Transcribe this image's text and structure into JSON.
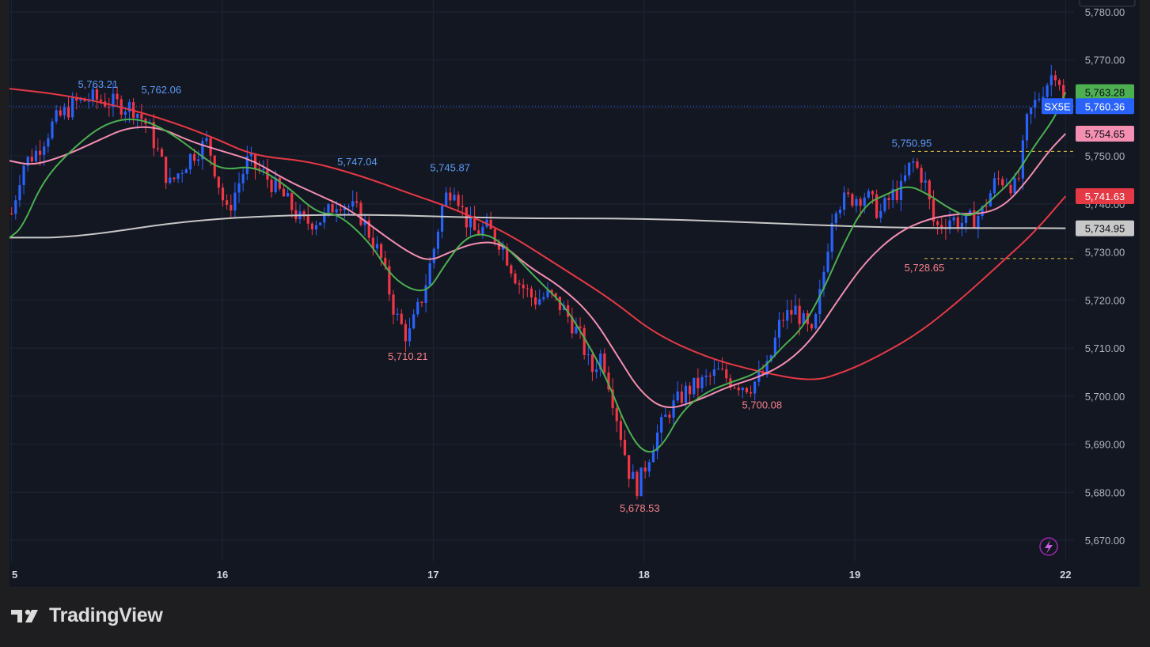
{
  "brand": {
    "name": "TradingView"
  },
  "colors": {
    "background": "#131722",
    "grid": "#1f2535",
    "up": "#2962ff",
    "down": "#f23645",
    "ma_fast": "#4caf50",
    "ma_mid": "#f48fb1",
    "ma_slow": "#e53945",
    "ma_long": "#c8c8c8",
    "axis_text": "#b2b5be"
  },
  "chart_data": {
    "type": "candlestick",
    "symbol": "SX5E",
    "ylim": [
      5665,
      5780
    ],
    "y_ticks": [
      5670,
      5680,
      5690,
      5700,
      5710,
      5720,
      5730,
      5740,
      5750,
      5760,
      5770,
      5780
    ],
    "y_tick_labels": [
      "5,670.00",
      "5,680.00",
      "5,690.00",
      "5,700.00",
      "5,710.00",
      "5,720.00",
      "5,730.00",
      "5,740.00",
      "5,750.00",
      "5,760.00",
      "5,770.00",
      "5,780.00"
    ],
    "x_range": [
      -0.01,
      5.04
    ],
    "x_ticks": [
      {
        "x": 0,
        "label": "5"
      },
      {
        "x": 1,
        "label": "16"
      },
      {
        "x": 2,
        "label": "17"
      },
      {
        "x": 3,
        "label": "18"
      },
      {
        "x": 4,
        "label": "19"
      },
      {
        "x": 5,
        "label": "22"
      }
    ],
    "candle_anchors": [
      [
        0.0,
        5738
      ],
      [
        0.05,
        5748
      ],
      [
        0.12,
        5751
      ],
      [
        0.2,
        5757
      ],
      [
        0.3,
        5761
      ],
      [
        0.38,
        5762
      ],
      [
        0.48,
        5761
      ],
      [
        0.58,
        5760
      ],
      [
        0.65,
        5756
      ],
      [
        0.75,
        5744
      ],
      [
        0.85,
        5750
      ],
      [
        0.93,
        5753
      ],
      [
        1.02,
        5738
      ],
      [
        1.12,
        5749
      ],
      [
        1.2,
        5746
      ],
      [
        1.3,
        5741
      ],
      [
        1.38,
        5736
      ],
      [
        1.48,
        5737
      ],
      [
        1.55,
        5741
      ],
      [
        1.65,
        5738
      ],
      [
        1.75,
        5729
      ],
      [
        1.82,
        5717
      ],
      [
        1.88,
        5712
      ],
      [
        1.95,
        5721
      ],
      [
        2.0,
        5730
      ],
      [
        2.05,
        5741
      ],
      [
        2.1,
        5744
      ],
      [
        2.15,
        5737
      ],
      [
        2.2,
        5734
      ],
      [
        2.25,
        5735
      ],
      [
        2.32,
        5732
      ],
      [
        2.4,
        5724
      ],
      [
        2.48,
        5720
      ],
      [
        2.55,
        5721
      ],
      [
        2.62,
        5718
      ],
      [
        2.7,
        5712
      ],
      [
        2.75,
        5705
      ],
      [
        2.8,
        5709
      ],
      [
        2.86,
        5698
      ],
      [
        2.93,
        5684
      ],
      [
        2.97,
        5681
      ],
      [
        3.05,
        5691
      ],
      [
        3.12,
        5697
      ],
      [
        3.2,
        5701
      ],
      [
        3.28,
        5703
      ],
      [
        3.35,
        5705
      ],
      [
        3.42,
        5703
      ],
      [
        3.5,
        5702
      ],
      [
        3.58,
        5705
      ],
      [
        3.65,
        5716
      ],
      [
        3.72,
        5718
      ],
      [
        3.8,
        5712
      ],
      [
        3.85,
        5725
      ],
      [
        3.9,
        5740
      ],
      [
        3.97,
        5741
      ],
      [
        4.05,
        5742
      ],
      [
        4.12,
        5738
      ],
      [
        4.18,
        5742
      ],
      [
        4.22,
        5743
      ],
      [
        4.27,
        5749
      ],
      [
        4.33,
        5745
      ],
      [
        4.38,
        5735
      ],
      [
        4.45,
        5737
      ],
      [
        4.52,
        5736
      ],
      [
        4.6,
        5738
      ],
      [
        4.67,
        5745
      ],
      [
        4.72,
        5745
      ],
      [
        4.77,
        5743
      ],
      [
        4.82,
        5758
      ],
      [
        4.88,
        5763
      ],
      [
        4.95,
        5768
      ],
      [
        4.97,
        5766
      ],
      [
        4.99,
        5761
      ]
    ],
    "series": [
      {
        "name": "SX5E",
        "last_label": "5,760.36",
        "color": "#2962ff",
        "points": [
          [
            -0.01,
            5733
          ],
          [
            0.3,
            5733
          ],
          [
            0.9,
            5737
          ],
          [
            1.6,
            5738
          ],
          [
            2.3,
            5737
          ],
          [
            3.0,
            5737
          ],
          [
            3.6,
            5736
          ],
          [
            4.2,
            5735
          ],
          [
            4.7,
            5735
          ],
          [
            5.0,
            5734.95
          ]
        ]
      },
      {
        "name": "",
        "last_label": "5,763.28",
        "color": "#4caf50",
        "points": [
          [
            -0.01,
            5733
          ],
          [
            0.05,
            5735
          ],
          [
            0.15,
            5745
          ],
          [
            0.3,
            5752
          ],
          [
            0.45,
            5757
          ],
          [
            0.6,
            5758
          ],
          [
            0.75,
            5755
          ],
          [
            0.9,
            5750
          ],
          [
            1.0,
            5747
          ],
          [
            1.15,
            5748
          ],
          [
            1.3,
            5744
          ],
          [
            1.45,
            5738
          ],
          [
            1.55,
            5738
          ],
          [
            1.7,
            5732
          ],
          [
            1.8,
            5725
          ],
          [
            1.9,
            5722
          ],
          [
            1.98,
            5722
          ],
          [
            2.05,
            5727
          ],
          [
            2.15,
            5733
          ],
          [
            2.25,
            5734
          ],
          [
            2.35,
            5731
          ],
          [
            2.5,
            5724
          ],
          [
            2.62,
            5719
          ],
          [
            2.72,
            5712
          ],
          [
            2.82,
            5704
          ],
          [
            2.92,
            5693
          ],
          [
            3.0,
            5688
          ],
          [
            3.08,
            5689
          ],
          [
            3.18,
            5697
          ],
          [
            3.3,
            5701
          ],
          [
            3.42,
            5703
          ],
          [
            3.55,
            5705
          ],
          [
            3.65,
            5710
          ],
          [
            3.75,
            5714
          ],
          [
            3.85,
            5722
          ],
          [
            3.95,
            5732
          ],
          [
            4.05,
            5740
          ],
          [
            4.15,
            5742
          ],
          [
            4.25,
            5744
          ],
          [
            4.35,
            5742
          ],
          [
            4.45,
            5739
          ],
          [
            4.55,
            5737
          ],
          [
            4.65,
            5741
          ],
          [
            4.75,
            5745
          ],
          [
            4.85,
            5752
          ],
          [
            4.95,
            5758
          ],
          [
            5.0,
            5763.28
          ]
        ]
      },
      {
        "name": "",
        "last_label": "5,754.65",
        "color": "#f48fb1",
        "points": [
          [
            -0.01,
            5749
          ],
          [
            0.1,
            5748
          ],
          [
            0.25,
            5750
          ],
          [
            0.4,
            5753
          ],
          [
            0.55,
            5756
          ],
          [
            0.7,
            5756
          ],
          [
            0.85,
            5753
          ],
          [
            1.0,
            5751
          ],
          [
            1.15,
            5749
          ],
          [
            1.3,
            5745
          ],
          [
            1.45,
            5742
          ],
          [
            1.6,
            5739
          ],
          [
            1.75,
            5734
          ],
          [
            1.88,
            5730
          ],
          [
            1.98,
            5728
          ],
          [
            2.08,
            5730
          ],
          [
            2.2,
            5732
          ],
          [
            2.32,
            5732
          ],
          [
            2.45,
            5727
          ],
          [
            2.6,
            5723
          ],
          [
            2.75,
            5717
          ],
          [
            2.88,
            5708
          ],
          [
            2.98,
            5701
          ],
          [
            3.1,
            5697
          ],
          [
            3.25,
            5699
          ],
          [
            3.4,
            5702
          ],
          [
            3.55,
            5704
          ],
          [
            3.68,
            5707
          ],
          [
            3.8,
            5712
          ],
          [
            3.92,
            5720
          ],
          [
            4.05,
            5728
          ],
          [
            4.2,
            5734
          ],
          [
            4.35,
            5737
          ],
          [
            4.5,
            5738
          ],
          [
            4.62,
            5738
          ],
          [
            4.72,
            5740
          ],
          [
            4.82,
            5745
          ],
          [
            4.92,
            5751
          ],
          [
            5.0,
            5754.65
          ]
        ]
      },
      {
        "name": "",
        "last_label": "5,741.63",
        "color": "#e53945",
        "points": [
          [
            -0.01,
            5764
          ],
          [
            0.2,
            5763
          ],
          [
            0.45,
            5761
          ],
          [
            0.7,
            5758
          ],
          [
            0.95,
            5754
          ],
          [
            1.15,
            5750
          ],
          [
            1.4,
            5749
          ],
          [
            1.65,
            5746
          ],
          [
            1.9,
            5742
          ],
          [
            2.1,
            5739
          ],
          [
            2.35,
            5734
          ],
          [
            2.6,
            5727
          ],
          [
            2.85,
            5720
          ],
          [
            3.05,
            5713
          ],
          [
            3.3,
            5708
          ],
          [
            3.55,
            5705
          ],
          [
            3.8,
            5703
          ],
          [
            3.95,
            5705
          ],
          [
            4.1,
            5708
          ],
          [
            4.3,
            5713
          ],
          [
            4.5,
            5720
          ],
          [
            4.7,
            5728
          ],
          [
            4.85,
            5734
          ],
          [
            5.0,
            5741.63
          ]
        ]
      }
    ],
    "extra_price_labels": [
      {
        "label": "5,734.95",
        "value": 5734.95,
        "color": "#c8c8c8"
      }
    ],
    "last_price_line": 5760.36,
    "annotations": [
      {
        "text": "5,763.21",
        "x": 0.41,
        "y": 5763.21,
        "color": "#5b9cf6"
      },
      {
        "text": "5,762.06",
        "x": 0.71,
        "y": 5762.06,
        "color": "#5b9cf6"
      },
      {
        "text": "5,747.04",
        "x": 1.64,
        "y": 5747.04,
        "color": "#5b9cf6"
      },
      {
        "text": "5,745.87",
        "x": 2.08,
        "y": 5745.87,
        "color": "#5b9cf6"
      },
      {
        "text": "5,710.21",
        "x": 1.88,
        "y": 5710.21,
        "color": "#f7818a"
      },
      {
        "text": "5,678.53",
        "x": 2.98,
        "y": 5678.53,
        "color": "#f7818a"
      },
      {
        "text": "5,700.08",
        "x": 3.56,
        "y": 5700.08,
        "color": "#f7818a"
      },
      {
        "text": "5,750.95",
        "x": 4.27,
        "y": 5750.95,
        "color": "#5b9cf6"
      },
      {
        "text": "5,728.65",
        "x": 4.33,
        "y": 5728.65,
        "color": "#f7818a"
      }
    ],
    "dashed_levels": [
      {
        "value": 5750.95,
        "from_x": 4.27
      },
      {
        "value": 5728.65,
        "from_x": 4.33
      }
    ],
    "grid": true
  }
}
